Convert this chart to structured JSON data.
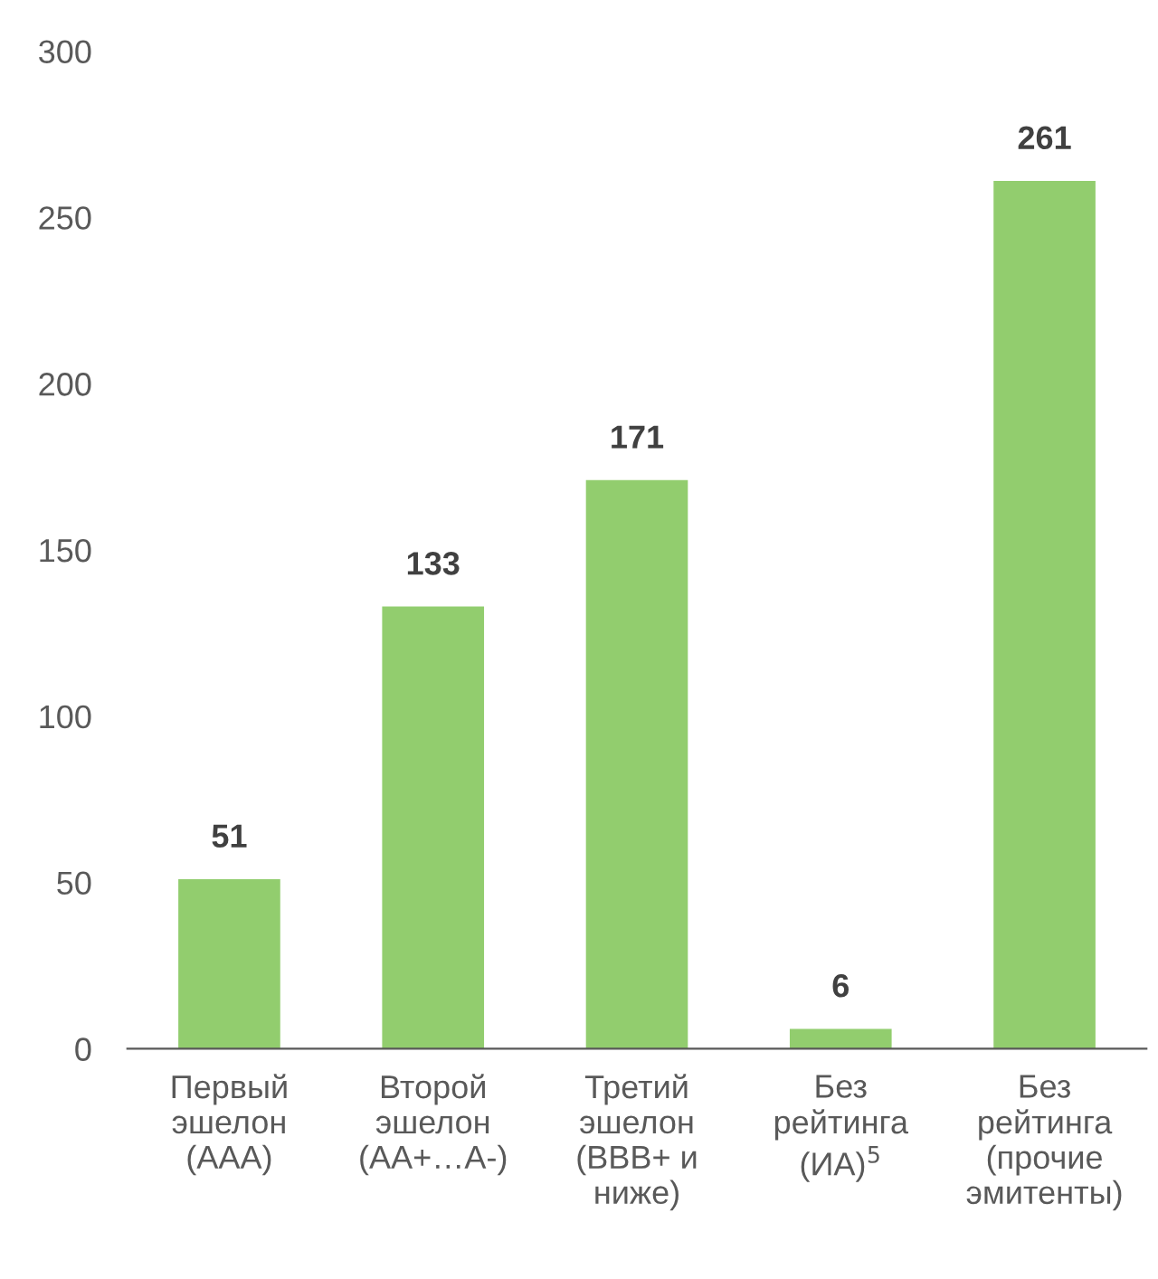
{
  "chart_data": {
    "type": "bar",
    "categories": [
      "Первый\nэшелон\n(AAA)",
      "Второй\nэшелон\n(AA+…A-)",
      "Третий\nэшелон\n(BBB+ и\nниже)",
      "Без\nрейтинга\n(ИА)$^{5}$",
      "Без\nрейтинга\n(прочие\nэмитенты)"
    ],
    "values": [
      51,
      133,
      171,
      6,
      261
    ],
    "color": "#92cd6e",
    "ylim": [
      0,
      300
    ],
    "yticks": [
      0,
      50,
      100,
      150,
      200,
      250,
      300
    ],
    "data_labels": true,
    "grid": false,
    "legend": false
  }
}
